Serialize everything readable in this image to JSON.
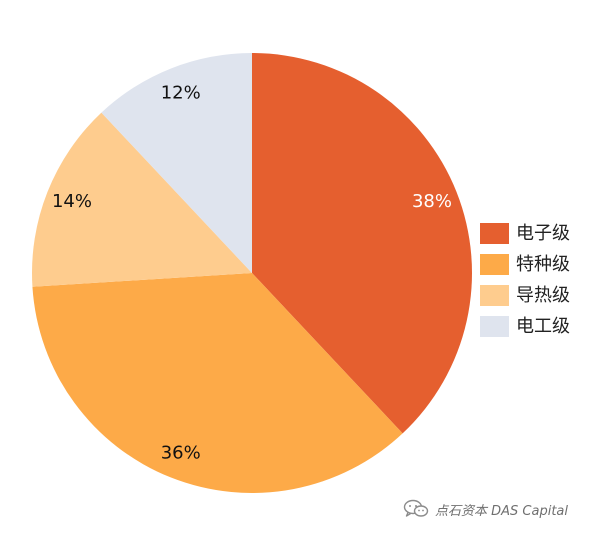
{
  "chart_data": {
    "type": "pie",
    "title": "",
    "slices": [
      {
        "name": "电子级",
        "value": 38,
        "label": "38%",
        "color": "#E55F2F",
        "label_color": "#ffffff"
      },
      {
        "name": "特种级",
        "value": 36,
        "label": "36%",
        "color": "#FDAA48",
        "label_color": "#111111"
      },
      {
        "name": "导热级",
        "value": 14,
        "label": "14%",
        "color": "#FECC8E",
        "label_color": "#111111"
      },
      {
        "name": "电工级",
        "value": 12,
        "label": "12%",
        "color": "#DFE4EE",
        "label_color": "#111111"
      }
    ],
    "start_direction": "top",
    "direction": "clockwise",
    "legend_position": "right"
  },
  "watermark": {
    "icon": "wechat-icon",
    "text": "点石资本 DAS Capital"
  }
}
